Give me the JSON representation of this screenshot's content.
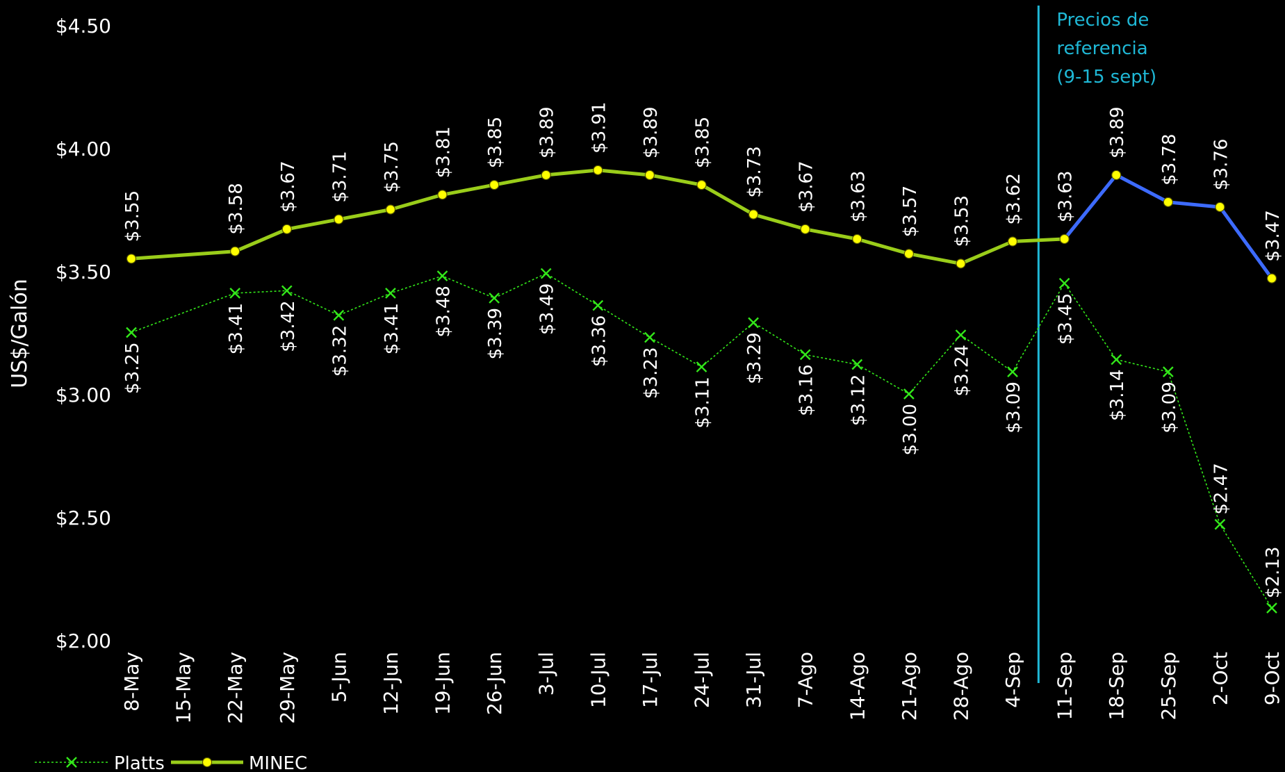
{
  "chart_data": {
    "type": "line",
    "ylabel": "US$/Galón",
    "ylim": [
      2.0,
      4.5
    ],
    "yticks": [
      2.0,
      2.5,
      3.0,
      3.5,
      4.0,
      4.5
    ],
    "ytick_labels": [
      "$2.00",
      "$2.50",
      "$3.00",
      "$3.50",
      "$4.00",
      "$4.50"
    ],
    "categories": [
      "8-May",
      "15-May",
      "22-May",
      "29-May",
      "5-Jun",
      "12-Jun",
      "19-Jun",
      "26-Jun",
      "3-Jul",
      "10-Jul",
      "17-Jul",
      "24-Jul",
      "31-Jul",
      "7-Ago",
      "14-Ago",
      "21-Ago",
      "28-Ago",
      "4-Sep",
      "11-Sep",
      "18-Sep",
      "25-Sep",
      "2-Oct",
      "9-Oct"
    ],
    "x_day_offsets": [
      0,
      7,
      14,
      21,
      28,
      35,
      42,
      49,
      56,
      63,
      70,
      77,
      84,
      91,
      98,
      105,
      112,
      119,
      126,
      133,
      140,
      147,
      154
    ],
    "series": [
      {
        "name": "Platts",
        "color": "#33e81a",
        "style": "dotted",
        "marker": "x",
        "values": [
          3.25,
          null,
          3.41,
          3.42,
          3.32,
          3.41,
          3.48,
          3.39,
          3.49,
          3.36,
          3.23,
          3.11,
          3.29,
          3.16,
          3.12,
          3.0,
          3.24,
          3.09,
          3.45,
          3.14,
          3.09,
          2.47,
          2.13
        ],
        "labels": [
          "$3.25",
          "",
          "$3.41",
          "$3.42",
          "$3.32",
          "$3.41",
          "$3.48",
          "$3.39",
          "$3.49",
          "$3.36",
          "$3.23",
          "$3.11",
          "$3.29",
          "$3.16",
          "$3.12",
          "$3.00",
          "$3.24",
          "$3.09",
          "$3.45",
          "$3.14",
          "$3.09",
          "$2.47",
          "$2.13"
        ]
      },
      {
        "name": "MINEC",
        "color": "#9acd1a",
        "forecast_color": "#3d6bff",
        "forecast_from_index": 18,
        "style": "solid",
        "marker": "circle",
        "marker_color": "#ffff00",
        "values": [
          3.55,
          null,
          3.58,
          3.67,
          3.71,
          3.75,
          3.81,
          3.85,
          3.89,
          3.91,
          3.89,
          3.85,
          3.73,
          3.67,
          3.63,
          3.57,
          3.53,
          3.62,
          3.63,
          3.89,
          3.78,
          3.76,
          3.47
        ],
        "labels": [
          "$3.55",
          "",
          "$3.58",
          "$3.67",
          "$3.71",
          "$3.75",
          "$3.81",
          "$3.85",
          "$3.89",
          "$3.91",
          "$3.89",
          "$3.85",
          "$3.73",
          "$3.67",
          "$3.63",
          "$3.57",
          "$3.53",
          "$3.62",
          "$3.63",
          "$3.89",
          "$3.78",
          "$3.76",
          "$3.47"
        ]
      }
    ],
    "reference_line": {
      "between_indices": [
        17,
        18
      ],
      "color": "#1fb8d6",
      "label_lines": [
        "Precios de",
        "referencia",
        "(9-15 sept)"
      ]
    },
    "legend": {
      "placement": "bottom-left",
      "entries": [
        "Platts",
        "MINEC"
      ]
    }
  }
}
